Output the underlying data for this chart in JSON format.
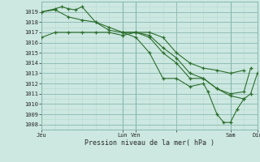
{
  "background_color": "#cce8e0",
  "grid_color_minor": "#b8d8d0",
  "grid_color_major": "#88b8b0",
  "line_color": "#2d6e2d",
  "xlabel": "Pression niveau de la mer( hPa )",
  "xlim": [
    0,
    96
  ],
  "ylim": [
    1007.5,
    1019.8
  ],
  "yticks": [
    1008,
    1009,
    1010,
    1011,
    1012,
    1013,
    1014,
    1015,
    1016,
    1017,
    1018,
    1019
  ],
  "xtick_positions": [
    0,
    36,
    42,
    60,
    84,
    96
  ],
  "xtick_labels": [
    "Jeu",
    "Lun",
    "Ven",
    "",
    "Sam",
    "Dim"
  ],
  "day_vlines": [
    0,
    36,
    42,
    84,
    96
  ],
  "series1": [
    [
      0,
      1016.5
    ],
    [
      6,
      1017.0
    ],
    [
      12,
      1017.0
    ],
    [
      18,
      1017.0
    ],
    [
      24,
      1017.0
    ],
    [
      30,
      1017.0
    ],
    [
      36,
      1016.7
    ],
    [
      42,
      1017.0
    ],
    [
      48,
      1017.0
    ],
    [
      54,
      1016.5
    ],
    [
      60,
      1015.0
    ],
    [
      66,
      1014.0
    ],
    [
      72,
      1013.5
    ],
    [
      78,
      1013.3
    ],
    [
      84,
      1013.0
    ],
    [
      90,
      1013.3
    ]
  ],
  "series2": [
    [
      0,
      1019.0
    ],
    [
      6,
      1019.3
    ],
    [
      9,
      1019.5
    ],
    [
      12,
      1019.3
    ],
    [
      15,
      1019.2
    ],
    [
      18,
      1019.5
    ],
    [
      24,
      1018.0
    ],
    [
      30,
      1017.5
    ],
    [
      36,
      1017.0
    ],
    [
      42,
      1017.0
    ],
    [
      48,
      1016.5
    ],
    [
      54,
      1015.0
    ],
    [
      60,
      1014.0
    ],
    [
      66,
      1012.5
    ],
    [
      72,
      1012.5
    ],
    [
      78,
      1011.5
    ],
    [
      84,
      1010.8
    ],
    [
      90,
      1010.5
    ]
  ],
  "series3": [
    [
      0,
      1019.0
    ],
    [
      6,
      1019.2
    ],
    [
      12,
      1018.5
    ],
    [
      18,
      1018.2
    ],
    [
      24,
      1018.0
    ],
    [
      30,
      1017.2
    ],
    [
      36,
      1017.0
    ],
    [
      42,
      1017.0
    ],
    [
      48,
      1016.7
    ],
    [
      54,
      1015.5
    ],
    [
      60,
      1014.5
    ],
    [
      66,
      1013.0
    ],
    [
      72,
      1012.5
    ],
    [
      78,
      1011.5
    ],
    [
      84,
      1011.0
    ],
    [
      90,
      1011.2
    ],
    [
      93,
      1013.5
    ]
  ],
  "series4": [
    [
      36,
      1017.0
    ],
    [
      42,
      1016.5
    ],
    [
      48,
      1015.0
    ],
    [
      54,
      1012.5
    ],
    [
      60,
      1012.5
    ],
    [
      66,
      1011.7
    ],
    [
      72,
      1012.0
    ],
    [
      74,
      1011.2
    ],
    [
      78,
      1009.0
    ],
    [
      81,
      1008.2
    ],
    [
      84,
      1008.2
    ],
    [
      87,
      1009.5
    ],
    [
      90,
      1010.5
    ],
    [
      93,
      1011.0
    ],
    [
      96,
      1013.0
    ]
  ],
  "label_fontsize": 5.0,
  "xlabel_fontsize": 6.0
}
